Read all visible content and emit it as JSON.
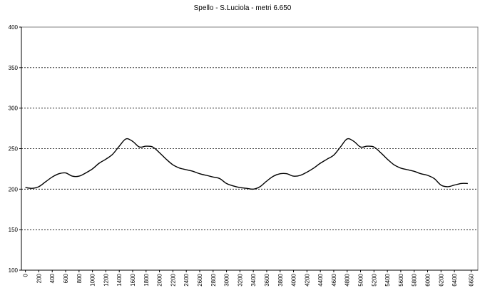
{
  "chart_data": {
    "type": "line",
    "title": "Spello - S.Luciola - metri 6.650",
    "xlabel": "",
    "ylabel": "",
    "ylim": [
      100,
      400
    ],
    "yticks": [
      100,
      150,
      200,
      250,
      300,
      350,
      400
    ],
    "xlim": [
      -60,
      6750
    ],
    "xticks": [
      0,
      200,
      400,
      600,
      800,
      1000,
      1200,
      1400,
      1600,
      1800,
      2000,
      2200,
      2400,
      2600,
      2800,
      3000,
      3200,
      3400,
      3600,
      3800,
      4000,
      4200,
      4400,
      4600,
      4800,
      5000,
      5200,
      5400,
      5600,
      5800,
      6000,
      6200,
      6400,
      6650
    ],
    "grid": true,
    "series": [
      {
        "name": "",
        "color": "#000000",
        "x": [
          0,
          100,
          200,
          300,
          400,
          500,
          600,
          700,
          800,
          900,
          1000,
          1100,
          1200,
          1300,
          1400,
          1500,
          1600,
          1700,
          1800,
          1900,
          2000,
          2100,
          2200,
          2300,
          2400,
          2500,
          2600,
          2700,
          2800,
          2900,
          3000,
          3100,
          3200,
          3300,
          3400,
          3500,
          3600,
          3700,
          3800,
          3900,
          4000,
          4100,
          4200,
          4300,
          4400,
          4500,
          4600,
          4700,
          4800,
          4900,
          5000,
          5100,
          5200,
          5300,
          5400,
          5500,
          5600,
          5700,
          5800,
          5900,
          6000,
          6100,
          6200,
          6300,
          6400,
          6500,
          6600
        ],
        "y": [
          202,
          201,
          203,
          209,
          215,
          219,
          220,
          216,
          216,
          220,
          225,
          232,
          237,
          243,
          253,
          262,
          259,
          252,
          253,
          252,
          245,
          237,
          230,
          226,
          224,
          222,
          219,
          217,
          215,
          213,
          207,
          204,
          202,
          201,
          200,
          203,
          210,
          216,
          219,
          219,
          216,
          217,
          221,
          226,
          232,
          237,
          242,
          252,
          262,
          259,
          252,
          253,
          252,
          245,
          237,
          230,
          226,
          224,
          222,
          219,
          217,
          213,
          205,
          203,
          205,
          207,
          207
        ]
      }
    ]
  }
}
